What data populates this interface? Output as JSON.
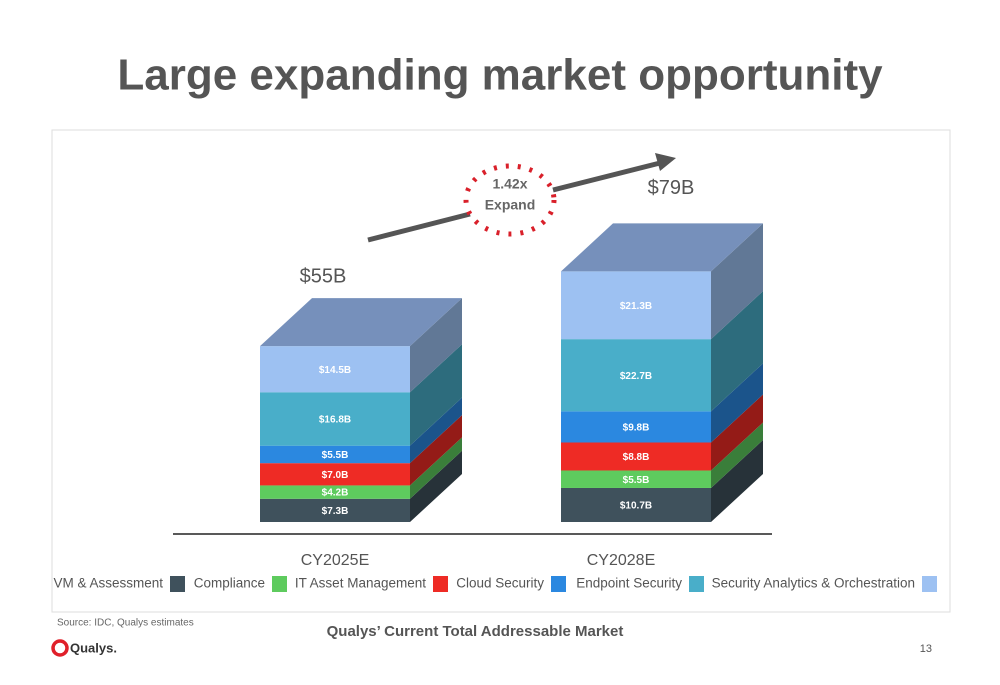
{
  "title": "Large expanding market opportunity",
  "chart_data": {
    "type": "bar",
    "stacked": true,
    "three_d": true,
    "categories": [
      "CY2025E",
      "CY2028E"
    ],
    "series": [
      {
        "name": "VM & Assessment",
        "color": "#3f515c",
        "values": [
          7.3,
          10.7
        ],
        "value_labels": [
          "$7.3B",
          "$10.7B"
        ]
      },
      {
        "name": "Compliance",
        "color": "#5ecb5e",
        "values": [
          4.2,
          5.5
        ],
        "value_labels": [
          "$4.2B",
          "$5.5B"
        ]
      },
      {
        "name": "IT Asset Management",
        "color": "#ee2b25",
        "values": [
          7.0,
          8.8
        ],
        "value_labels": [
          "$7.0B",
          "$8.8B"
        ]
      },
      {
        "name": "Cloud Security",
        "color": "#2b88e0",
        "values": [
          5.5,
          9.8
        ],
        "value_labels": [
          "$5.5B",
          "$9.8B"
        ]
      },
      {
        "name": "Endpoint Security",
        "color": "#49aec9",
        "values": [
          16.8,
          22.7
        ],
        "value_labels": [
          "$16.8B",
          "$22.7B"
        ]
      },
      {
        "name": "Security Analytics  & Orchestration",
        "color": "#9dc1f2",
        "values": [
          14.5,
          21.3
        ],
        "value_labels": [
          "$14.5B",
          "$21.3B"
        ]
      }
    ],
    "totals": [
      {
        "value": 55,
        "label": "$55B"
      },
      {
        "value": 79,
        "label": "$79B"
      }
    ],
    "annotation": [
      "1.42x",
      "Expand"
    ],
    "top_color": "#7690bb"
  },
  "source": "Source: IDC, Qualys estimates",
  "footer": "Qualys’ Current Total Addressable Market",
  "logo": "Qualys.",
  "page_number": "13"
}
